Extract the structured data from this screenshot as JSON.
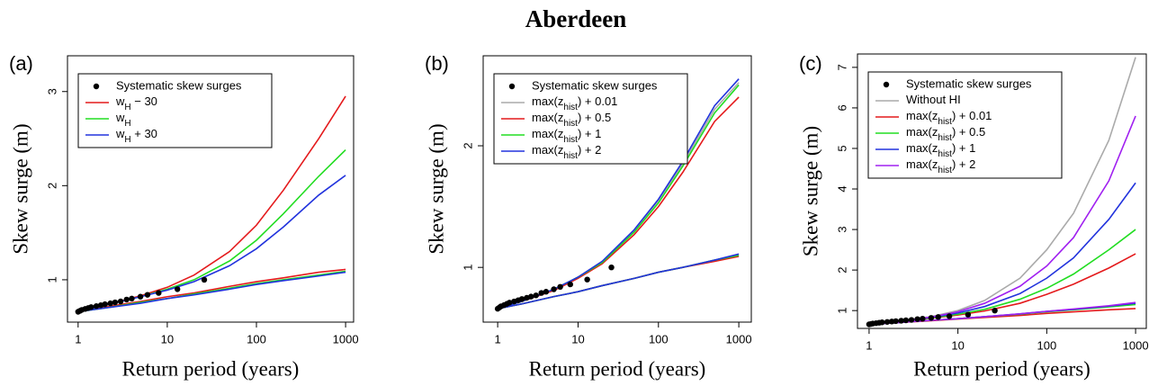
{
  "title": "Aberdeen",
  "chart_data": [
    {
      "type": "line",
      "panel_label": "(a)",
      "xlabel": "Return period (years)",
      "ylabel": "Skew surge (m)",
      "log_x": true,
      "xlim": [
        0.76,
        1230
      ],
      "ylim": [
        0.55,
        3.38
      ],
      "xticks": [
        1,
        10,
        100,
        1000
      ],
      "yticks": [
        1,
        2,
        3
      ],
      "legend": "top-left",
      "x": [
        1,
        2,
        5,
        10,
        20,
        50,
        100,
        200,
        500,
        1000
      ],
      "points": {
        "name": "Systematic skew surges",
        "color": "#000000",
        "x": [
          1,
          1.05,
          1.1,
          1.2,
          1.3,
          1.4,
          1.6,
          1.8,
          2,
          2.3,
          2.6,
          3,
          3.5,
          4,
          5,
          6,
          8,
          13,
          26
        ],
        "values": [
          0.66,
          0.67,
          0.68,
          0.69,
          0.7,
          0.71,
          0.72,
          0.73,
          0.74,
          0.75,
          0.76,
          0.77,
          0.79,
          0.8,
          0.82,
          0.84,
          0.86,
          0.9,
          1.0
        ]
      },
      "series": [
        {
          "name": "w_H − 30",
          "color": "#e41a1c",
          "values": [
            0.66,
            0.73,
            0.83,
            0.92,
            1.05,
            1.3,
            1.58,
            1.95,
            2.5,
            2.95
          ],
          "lower": [
            0.66,
            0.71,
            0.77,
            0.82,
            0.86,
            0.93,
            0.98,
            1.02,
            1.08,
            1.11
          ]
        },
        {
          "name": "w_H",
          "color": "#22dd22",
          "values": [
            0.66,
            0.73,
            0.82,
            0.9,
            1.0,
            1.2,
            1.42,
            1.7,
            2.1,
            2.38
          ],
          "lower": [
            0.66,
            0.7,
            0.76,
            0.8,
            0.85,
            0.91,
            0.96,
            1.0,
            1.05,
            1.09
          ]
        },
        {
          "name": "w_H + 30",
          "color": "#2233dd",
          "values": [
            0.66,
            0.73,
            0.82,
            0.89,
            0.98,
            1.15,
            1.33,
            1.56,
            1.9,
            2.11
          ],
          "lower": [
            0.66,
            0.7,
            0.75,
            0.8,
            0.84,
            0.9,
            0.95,
            0.99,
            1.04,
            1.08
          ]
        }
      ]
    },
    {
      "type": "line",
      "panel_label": "(b)",
      "xlabel": "Return period (years)",
      "ylabel": "Skew surge (m)",
      "log_x": true,
      "xlim": [
        0.66,
        1430
      ],
      "ylim": [
        0.55,
        2.74
      ],
      "xticks": [
        1,
        10,
        100,
        1000
      ],
      "yticks": [
        1,
        2
      ],
      "legend": "top-left",
      "x": [
        1,
        2,
        5,
        10,
        20,
        50,
        100,
        200,
        500,
        1000
      ],
      "points": {
        "name": "Systematic skew surges",
        "color": "#000000",
        "x": [
          1,
          1.05,
          1.1,
          1.2,
          1.3,
          1.4,
          1.6,
          1.8,
          2,
          2.3,
          2.6,
          3,
          3.5,
          4,
          5,
          6,
          8,
          13,
          26
        ],
        "values": [
          0.66,
          0.67,
          0.68,
          0.69,
          0.7,
          0.71,
          0.72,
          0.73,
          0.74,
          0.75,
          0.76,
          0.77,
          0.79,
          0.8,
          0.82,
          0.84,
          0.86,
          0.9,
          1.0
        ]
      },
      "series": [
        {
          "name": "max(z_hist) + 0.01",
          "color": "#aaaaaa",
          "values": [
            0.66,
            0.72,
            0.82,
            0.92,
            1.05,
            1.3,
            1.55,
            1.85,
            2.3,
            2.52
          ],
          "lower": [
            0.66,
            0.7,
            0.76,
            0.8,
            0.85,
            0.91,
            0.96,
            1.0,
            1.06,
            1.1
          ]
        },
        {
          "name": "max(z_hist) + 0.5",
          "color": "#e41a1c",
          "values": [
            0.66,
            0.72,
            0.81,
            0.91,
            1.03,
            1.27,
            1.5,
            1.78,
            2.2,
            2.4
          ],
          "lower": [
            0.66,
            0.7,
            0.76,
            0.8,
            0.85,
            0.91,
            0.96,
            1.0,
            1.05,
            1.09
          ]
        },
        {
          "name": "max(z_hist) + 1",
          "color": "#22dd22",
          "values": [
            0.66,
            0.72,
            0.82,
            0.92,
            1.04,
            1.29,
            1.53,
            1.83,
            2.27,
            2.5
          ],
          "lower": [
            0.66,
            0.7,
            0.76,
            0.8,
            0.85,
            0.91,
            0.96,
            1.0,
            1.06,
            1.1
          ]
        },
        {
          "name": "max(z_hist) + 2",
          "color": "#2233dd",
          "values": [
            0.66,
            0.72,
            0.82,
            0.92,
            1.05,
            1.31,
            1.56,
            1.87,
            2.33,
            2.55
          ],
          "lower": [
            0.66,
            0.7,
            0.76,
            0.8,
            0.85,
            0.91,
            0.96,
            1.0,
            1.06,
            1.11
          ]
        }
      ]
    },
    {
      "type": "line",
      "panel_label": "(c)",
      "xlabel": "Return period (years)",
      "ylabel": "Skew surge (m)",
      "log_x": true,
      "xlim": [
        0.74,
        1320
      ],
      "ylim": [
        0.56,
        7.33
      ],
      "xticks": [
        1,
        10,
        100,
        1000
      ],
      "yticks": [
        1,
        2,
        3,
        4,
        5,
        6,
        7
      ],
      "legend": "top-left",
      "x": [
        1,
        2,
        5,
        10,
        20,
        50,
        100,
        200,
        500,
        1000
      ],
      "points": {
        "name": "Systematic skew surges",
        "color": "#000000",
        "x": [
          1,
          1.05,
          1.1,
          1.2,
          1.3,
          1.4,
          1.6,
          1.8,
          2,
          2.3,
          2.6,
          3,
          3.5,
          4,
          5,
          6,
          8,
          13,
          26
        ],
        "values": [
          0.66,
          0.67,
          0.68,
          0.69,
          0.7,
          0.71,
          0.72,
          0.73,
          0.74,
          0.75,
          0.76,
          0.77,
          0.79,
          0.8,
          0.82,
          0.84,
          0.86,
          0.9,
          1.0
        ]
      },
      "series": [
        {
          "name": "Without HI",
          "color": "#aaaaaa",
          "values": [
            0.66,
            0.73,
            0.85,
            1.0,
            1.25,
            1.8,
            2.5,
            3.4,
            5.2,
            7.25
          ]
        },
        {
          "name": "max(z_hist) + 0.01",
          "color": "#e41a1c",
          "values": [
            0.66,
            0.72,
            0.81,
            0.89,
            0.99,
            1.18,
            1.4,
            1.65,
            2.05,
            2.4
          ],
          "lower": [
            0.66,
            0.7,
            0.75,
            0.79,
            0.83,
            0.88,
            0.93,
            0.97,
            1.02,
            1.05
          ]
        },
        {
          "name": "max(z_hist) + 0.5",
          "color": "#22dd22",
          "values": [
            0.66,
            0.72,
            0.82,
            0.91,
            1.03,
            1.28,
            1.55,
            1.9,
            2.5,
            3.0
          ],
          "lower": [
            0.66,
            0.7,
            0.76,
            0.8,
            0.85,
            0.91,
            0.97,
            1.02,
            1.09,
            1.15
          ]
        },
        {
          "name": "max(z_hist) + 1",
          "color": "#2233dd",
          "values": [
            0.66,
            0.73,
            0.83,
            0.94,
            1.1,
            1.42,
            1.8,
            2.3,
            3.25,
            4.15
          ],
          "lower": [
            0.66,
            0.7,
            0.76,
            0.8,
            0.85,
            0.92,
            0.98,
            1.03,
            1.11,
            1.18
          ]
        },
        {
          "name": "max(z_hist) + 2",
          "color": "#a020f0",
          "values": [
            0.66,
            0.73,
            0.84,
            0.97,
            1.18,
            1.6,
            2.1,
            2.8,
            4.2,
            5.8
          ],
          "lower": [
            0.66,
            0.7,
            0.76,
            0.8,
            0.85,
            0.92,
            0.98,
            1.04,
            1.12,
            1.2
          ]
        }
      ]
    }
  ]
}
